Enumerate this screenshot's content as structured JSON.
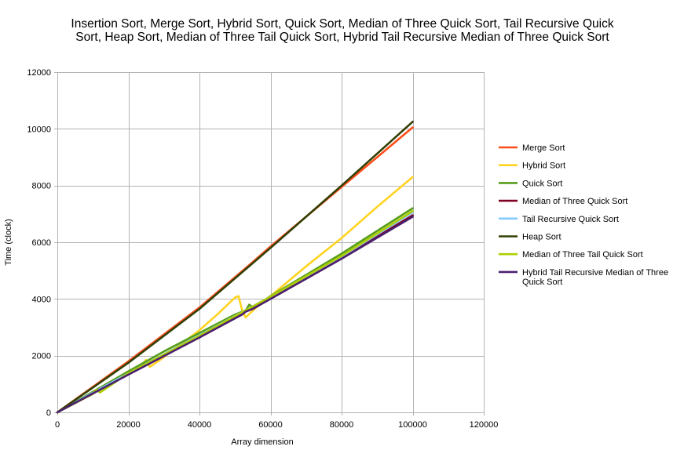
{
  "chart_data": {
    "type": "line",
    "title_lines": [
      "Insertion Sort, Merge Sort, Hybrid Sort, Quick Sort, Median of Three Quick Sort, Tail Recursive Quick",
      "Sort, Heap Sort, Median of Three Tail Quick Sort, Hybrid Tail Recursive Median of Three Quick Sort"
    ],
    "xlabel": "Array dimension",
    "ylabel": "Time (clock)",
    "xlim": [
      0,
      120000
    ],
    "ylim": [
      0,
      12000
    ],
    "x_ticks": [
      "0",
      "20000",
      "40000",
      "60000",
      "80000",
      "100000",
      "120000"
    ],
    "y_ticks": [
      "0",
      "2000",
      "4000",
      "6000",
      "8000",
      "10000",
      "12000"
    ],
    "grid": true,
    "legend_position": "right",
    "series": [
      {
        "name": "Merge Sort",
        "color": "#ff4d1a",
        "points": [
          [
            0,
            0
          ],
          [
            20000,
            1800
          ],
          [
            40000,
            3700
          ],
          [
            55000,
            5300
          ],
          [
            60000,
            5850
          ],
          [
            80000,
            7950
          ],
          [
            90000,
            9000
          ],
          [
            100000,
            10050
          ]
        ]
      },
      {
        "name": "Hybrid Sort",
        "color": "#ffd320",
        "points": [
          [
            0,
            0
          ],
          [
            10000,
            700
          ],
          [
            20000,
            1450
          ],
          [
            24000,
            1700
          ],
          [
            25000,
            1850
          ],
          [
            26000,
            1600
          ],
          [
            30000,
            1950
          ],
          [
            40000,
            2900
          ],
          [
            45000,
            3450
          ],
          [
            50000,
            4050
          ],
          [
            51000,
            4100
          ],
          [
            52000,
            3600
          ],
          [
            53000,
            3350
          ],
          [
            56000,
            3700
          ],
          [
            60000,
            4100
          ],
          [
            70000,
            5150
          ],
          [
            80000,
            6150
          ],
          [
            90000,
            7250
          ],
          [
            100000,
            8300
          ]
        ]
      },
      {
        "name": "Quick Sort",
        "color": "#579d1c",
        "points": [
          [
            0,
            0
          ],
          [
            20000,
            1450
          ],
          [
            30000,
            2150
          ],
          [
            40000,
            2800
          ],
          [
            50000,
            3450
          ],
          [
            53000,
            3600
          ],
          [
            54000,
            3800
          ],
          [
            55000,
            3700
          ],
          [
            60000,
            4100
          ],
          [
            70000,
            4850
          ],
          [
            80000,
            5600
          ],
          [
            90000,
            6400
          ],
          [
            100000,
            7200
          ]
        ]
      },
      {
        "name": "Median of Three Quick Sort",
        "color": "#7e0021",
        "points": [
          [
            0,
            0
          ],
          [
            20000,
            1350
          ],
          [
            40000,
            2650
          ],
          [
            60000,
            4050
          ],
          [
            80000,
            5450
          ],
          [
            100000,
            6950
          ]
        ]
      },
      {
        "name": "Tail Recursive Quick Sort",
        "color": "#83caff",
        "points": [
          [
            0,
            0
          ],
          [
            20000,
            1380
          ],
          [
            40000,
            2720
          ],
          [
            60000,
            4080
          ],
          [
            80000,
            5500
          ],
          [
            100000,
            7050
          ]
        ]
      },
      {
        "name": "Heap Sort",
        "color": "#314004",
        "points": [
          [
            0,
            0
          ],
          [
            20000,
            1750
          ],
          [
            40000,
            3650
          ],
          [
            60000,
            5800
          ],
          [
            80000,
            8000
          ],
          [
            100000,
            10250
          ]
        ]
      },
      {
        "name": "Median of Three Tail Quick Sort",
        "color": "#aecf00",
        "points": [
          [
            0,
            0
          ],
          [
            10000,
            650
          ],
          [
            11000,
            800
          ],
          [
            12000,
            700
          ],
          [
            20000,
            1380
          ],
          [
            40000,
            2700
          ],
          [
            60000,
            4080
          ],
          [
            80000,
            5520
          ],
          [
            100000,
            7100
          ]
        ]
      },
      {
        "name": "Hybrid Tail Recursive Median of Three Quick Sort",
        "color": "#4b1f6f",
        "points": [
          [
            0,
            0
          ],
          [
            20000,
            1330
          ],
          [
            40000,
            2640
          ],
          [
            52000,
            3450
          ],
          [
            53000,
            3550
          ],
          [
            55000,
            3650
          ],
          [
            60000,
            4000
          ],
          [
            80000,
            5420
          ],
          [
            100000,
            6900
          ]
        ]
      }
    ],
    "legend_lines": [
      [
        "Merge Sort"
      ],
      [
        "Hybrid Sort"
      ],
      [
        "Quick Sort"
      ],
      [
        "Median of Three Quick Sort"
      ],
      [
        "Tail Recursive Quick Sort"
      ],
      [
        "Heap Sort"
      ],
      [
        "Median of Three Tail Quick Sort"
      ],
      [
        "Hybrid Tail Recursive Median of Three",
        "Quick Sort"
      ]
    ]
  }
}
